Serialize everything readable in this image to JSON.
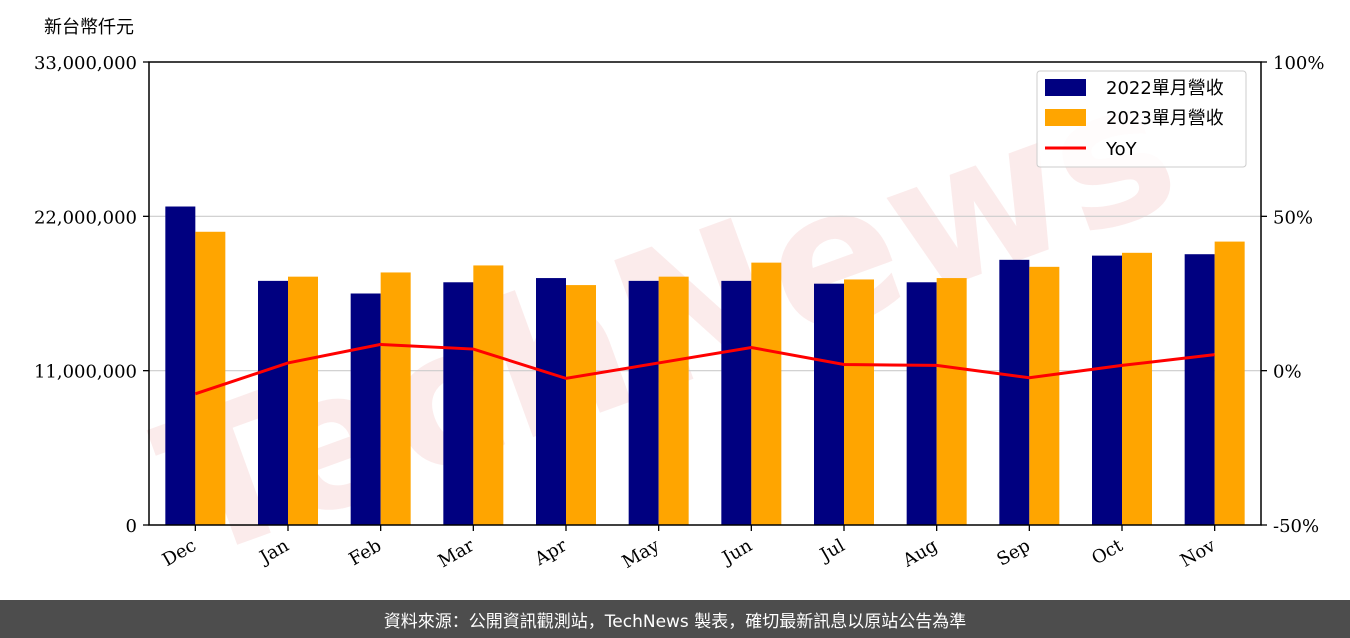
{
  "chart_data": {
    "type": "bar",
    "unit_label": "新台幣仟元",
    "categories": [
      "Dec",
      "Jan",
      "Feb",
      "Mar",
      "Apr",
      "May",
      "Jun",
      "Jul",
      "Aug",
      "Sep",
      "Oct",
      "Nov"
    ],
    "series": [
      {
        "name": "2022單月營收",
        "type": "bar",
        "axis": "left",
        "color": "#000080",
        "values": [
          22700000,
          17400000,
          16500000,
          17300000,
          17600000,
          17400000,
          17400000,
          17200000,
          17300000,
          18900000,
          19200000,
          19300000
        ]
      },
      {
        "name": "2023單月營收",
        "type": "bar",
        "axis": "left",
        "color": "#ffa500",
        "values": [
          20900000,
          17700000,
          18000000,
          18500000,
          17100000,
          17700000,
          18700000,
          17500000,
          17600000,
          18400000,
          19400000,
          20200000
        ]
      },
      {
        "name": "YoY",
        "type": "line",
        "axis": "right",
        "color": "#ff0000",
        "values": [
          -7.5,
          2.5,
          8.5,
          7.0,
          -2.5,
          2.5,
          7.5,
          2.0,
          1.7,
          -2.3,
          1.7,
          5.2
        ]
      }
    ],
    "y_left": {
      "min": 0,
      "max": 33000000,
      "ticks": [
        0,
        11000000,
        22000000,
        33000000
      ],
      "tick_labels": [
        "0",
        "11,000,000",
        "22,000,000",
        "33,000,000"
      ]
    },
    "y_right": {
      "min": -50,
      "max": 100,
      "ticks": [
        -50,
        0,
        50,
        100
      ],
      "tick_labels": [
        "-50%",
        "0%",
        "50%",
        "100%"
      ]
    },
    "grid": "horizontal",
    "legend": "top-right"
  },
  "watermark": "TechNews",
  "footer_text": "資料來源：公開資訊觀測站，TechNews 製表，確切最新訊息以原站公告為準"
}
